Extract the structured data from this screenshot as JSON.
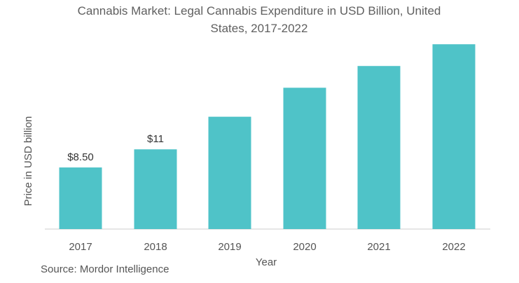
{
  "title": "Cannabis Market: Legal Cannabis Expenditure in USD Billion, United States, 2017-2022",
  "source": "Source: Mordor Intelligence",
  "colors": {
    "bar": "#4fc3c8",
    "axis": "#cccccc",
    "text": "#555555"
  },
  "chart_data": {
    "type": "bar",
    "title": "Cannabis Market: Legal Cannabis Expenditure in USD Billion, United States, 2017-2022",
    "xlabel": "Year",
    "ylabel": "Price in USD billion",
    "categories": [
      "2017",
      "2018",
      "2019",
      "2020",
      "2021",
      "2022"
    ],
    "values": [
      8.5,
      11,
      15.5,
      19.5,
      22.5,
      25.5
    ],
    "data_labels": [
      "$8.50",
      "$11",
      "",
      "",
      "",
      ""
    ],
    "ylim": [
      0,
      26
    ],
    "grid": false,
    "legend": "none"
  }
}
